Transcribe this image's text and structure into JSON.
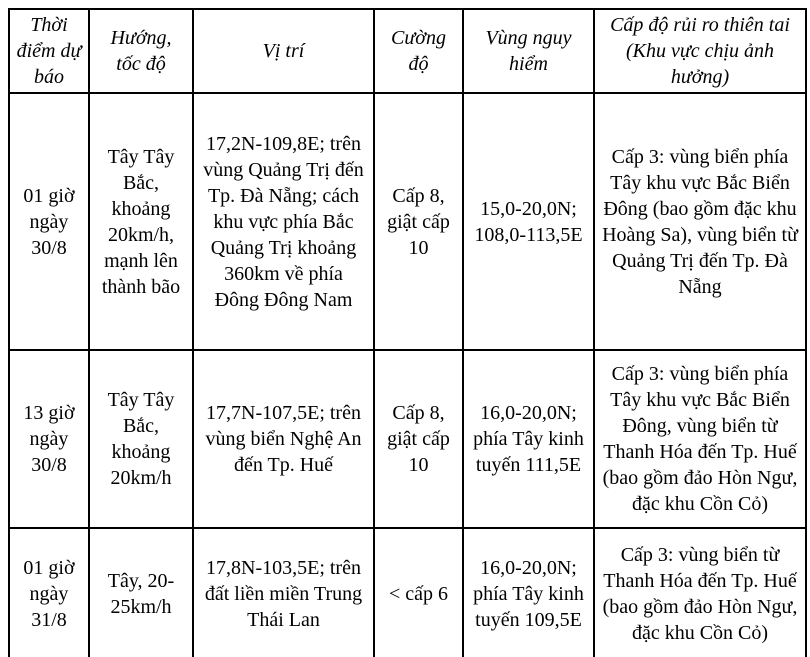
{
  "table": {
    "title_semantic": "typhoon-forecast-table",
    "headers": [
      "Thời điểm dự báo",
      "Hướng, tốc độ",
      "Vị trí",
      "Cường độ",
      "Vùng nguy hiểm",
      "Cấp độ rủi ro thiên tai (Khu vực chịu ảnh hưởng)"
    ],
    "rows": [
      {
        "cells": [
          "01 giờ ngày 30/8",
          "Tây Tây Bắc, khoảng 20km/h, mạnh lên thành bão",
          "17,2N-109,8E; trên vùng Quảng Trị đến Tp. Đà Nẵng; cách khu vực phía Bắc Quảng Trị khoảng 360km về phía Đông Đông Nam",
          "Cấp 8, giật cấp 10",
          "15,0-20,0N; 108,0-113,5E",
          "Cấp 3: vùng biển phía Tây khu vực Bắc Biển Đông (bao gồm đặc khu Hoàng Sa), vùng biển từ Quảng Trị đến Tp. Đà Nẵng"
        ]
      },
      {
        "cells": [
          "13 giờ ngày 30/8",
          "Tây Tây Bắc, khoảng 20km/h",
          "17,7N-107,5E; trên vùng biển Nghệ An đến Tp. Huế",
          "Cấp 8, giật cấp 10",
          "16,0-20,0N; phía Tây kinh tuyến 111,5E",
          "Cấp 3: vùng biển phía Tây khu vực Bắc Biển Đông, vùng biển từ Thanh Hóa đến Tp. Huế (bao gồm đảo Hòn Ngư, đặc khu Cồn Cỏ)"
        ]
      },
      {
        "cells": [
          "01 giờ ngày 31/8",
          "Tây, 20-25km/h",
          "17,8N-103,5E; trên đất liền miền Trung Thái Lan",
          "< cấp 6",
          "16,0-20,0N; phía Tây kinh tuyến 109,5E",
          "Cấp 3: vùng biển từ Thanh Hóa đến Tp. Huế (bao gồm đảo Hòn Ngư, đặc khu Cồn Cỏ)"
        ]
      }
    ]
  },
  "colors": {
    "border": "#000000",
    "text": "#000000",
    "background": "#ffffff"
  }
}
